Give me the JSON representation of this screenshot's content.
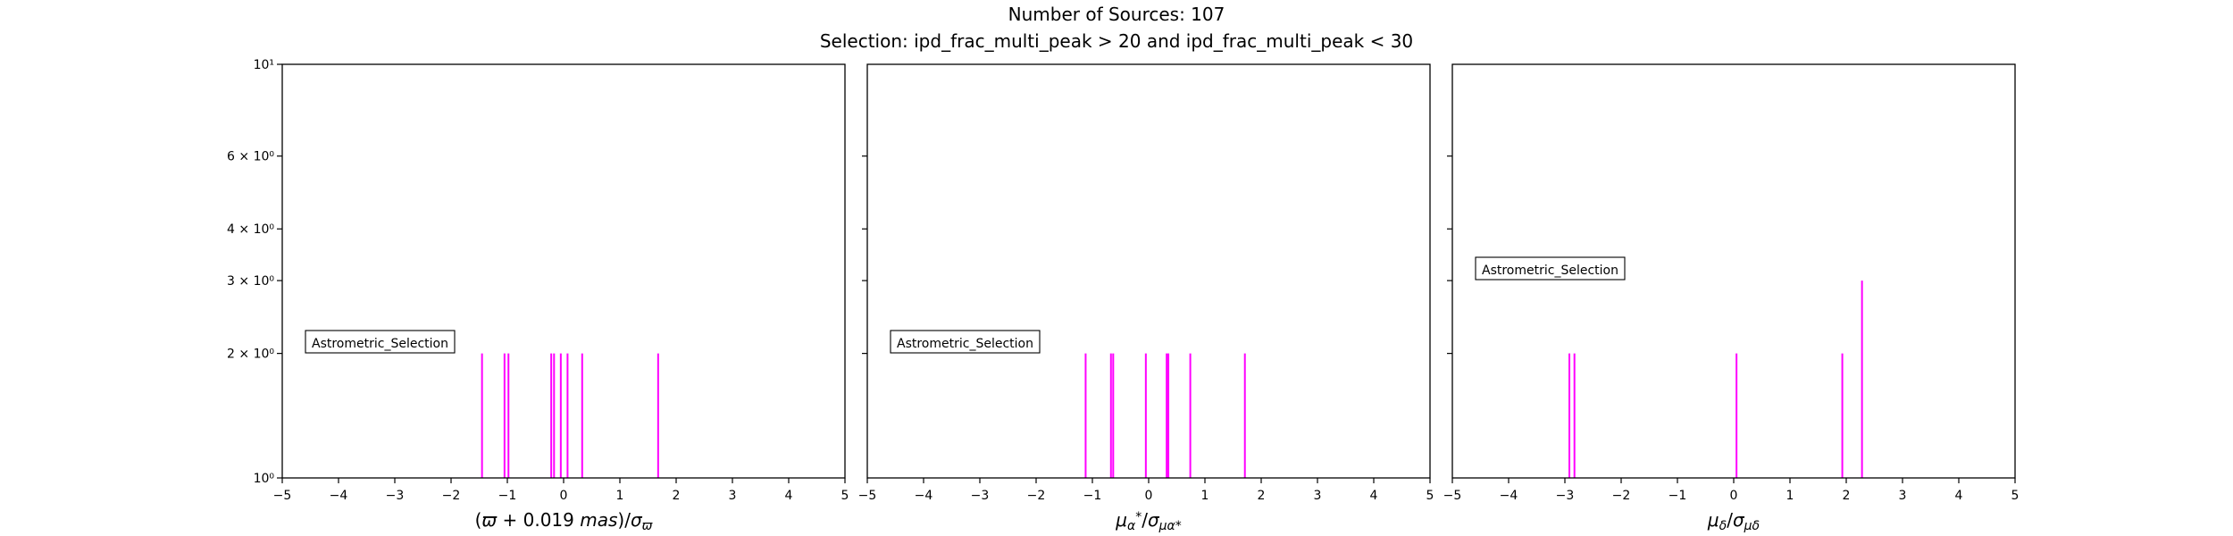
{
  "figure": {
    "title": "Number of Sources: 107",
    "subtitle": "Selection: ipd_frac_multi_peak > 20 and ipd_frac_multi_peak < 30"
  },
  "chart_data": [
    {
      "type": "bar",
      "xlabel": "(ϖ + 0.019 mas)/σϖ",
      "xlabel_parts": [
        {
          "t": "(",
          "i": false
        },
        {
          "t": "ϖ",
          "i": true
        },
        {
          "t": " + 0.019 ",
          "i": false
        },
        {
          "t": "mas",
          "i": true
        },
        {
          "t": ")/",
          "i": false
        },
        {
          "t": "σ",
          "i": true
        },
        {
          "t": "ϖ",
          "i": true,
          "sub": true
        }
      ],
      "ylabel": "",
      "xlim": [
        -5,
        5
      ],
      "ylim": [
        1,
        10
      ],
      "yscale": "log",
      "xticks": [
        -5,
        -4,
        -3,
        -2,
        -1,
        0,
        1,
        2,
        3,
        4,
        5
      ],
      "yticks": [
        {
          "v": 1,
          "label": "10⁰"
        },
        {
          "v": 2,
          "label": "2 × 10⁰"
        },
        {
          "v": 3,
          "label": "3 × 10⁰"
        },
        {
          "v": 4,
          "label": "4 × 10⁰"
        },
        {
          "v": 6,
          "label": "6 × 10⁰"
        },
        {
          "v": 10,
          "label": "10¹"
        }
      ],
      "legend": {
        "label": "Astrometric_Selection",
        "placement": "center-left"
      },
      "series": [
        {
          "name": "Astrometric_Selection",
          "color": "#ff00ff",
          "x": [
            -1.45,
            -1.05,
            -0.98,
            -0.22,
            -0.17,
            -0.05,
            0.07,
            0.33,
            1.68
          ],
          "values": [
            2,
            2,
            2,
            2,
            2,
            2,
            2,
            2,
            2
          ]
        }
      ]
    },
    {
      "type": "bar",
      "xlabel": "μα*/σμα*",
      "xlabel_parts": [
        {
          "t": "μ",
          "i": true
        },
        {
          "t": "α",
          "i": true,
          "sub": true
        },
        {
          "t": "*",
          "i": false,
          "sup": true
        },
        {
          "t": "/",
          "i": false
        },
        {
          "t": "σ",
          "i": true
        },
        {
          "t": "μα*",
          "i": true,
          "sub": true
        }
      ],
      "ylabel": "",
      "xlim": [
        -5,
        5
      ],
      "ylim": [
        1,
        10
      ],
      "yscale": "log",
      "xticks": [
        -5,
        -4,
        -3,
        -2,
        -1,
        0,
        1,
        2,
        3,
        4,
        5
      ],
      "yticks": [],
      "legend": {
        "label": "Astrometric_Selection",
        "placement": "center-left"
      },
      "series": [
        {
          "name": "Astrometric_Selection",
          "color": "#ff00ff",
          "x": [
            -1.12,
            -0.67,
            -0.63,
            -0.05,
            0.32,
            0.35,
            0.74,
            1.71
          ],
          "values": [
            2,
            2,
            2,
            2,
            2,
            2,
            2,
            2
          ]
        }
      ]
    },
    {
      "type": "bar",
      "xlabel": "μδ/σμδ",
      "xlabel_parts": [
        {
          "t": "μ",
          "i": true
        },
        {
          "t": "δ",
          "i": true,
          "sub": true
        },
        {
          "t": "/",
          "i": false
        },
        {
          "t": "σ",
          "i": true
        },
        {
          "t": "μδ",
          "i": true,
          "sub": true
        }
      ],
      "ylabel": "",
      "xlim": [
        -5,
        5
      ],
      "ylim": [
        1,
        10
      ],
      "yscale": "log",
      "xticks": [
        -5,
        -4,
        -3,
        -2,
        -1,
        0,
        1,
        2,
        3,
        4,
        5
      ],
      "yticks": [],
      "legend": {
        "label": "Astrometric_Selection",
        "placement": "upper-left"
      },
      "series": [
        {
          "name": "Astrometric_Selection",
          "color": "#ff00ff",
          "x": [
            -2.92,
            -2.83,
            0.05,
            1.93,
            2.28
          ],
          "values": [
            2,
            2,
            2,
            2,
            3
          ]
        }
      ]
    }
  ]
}
